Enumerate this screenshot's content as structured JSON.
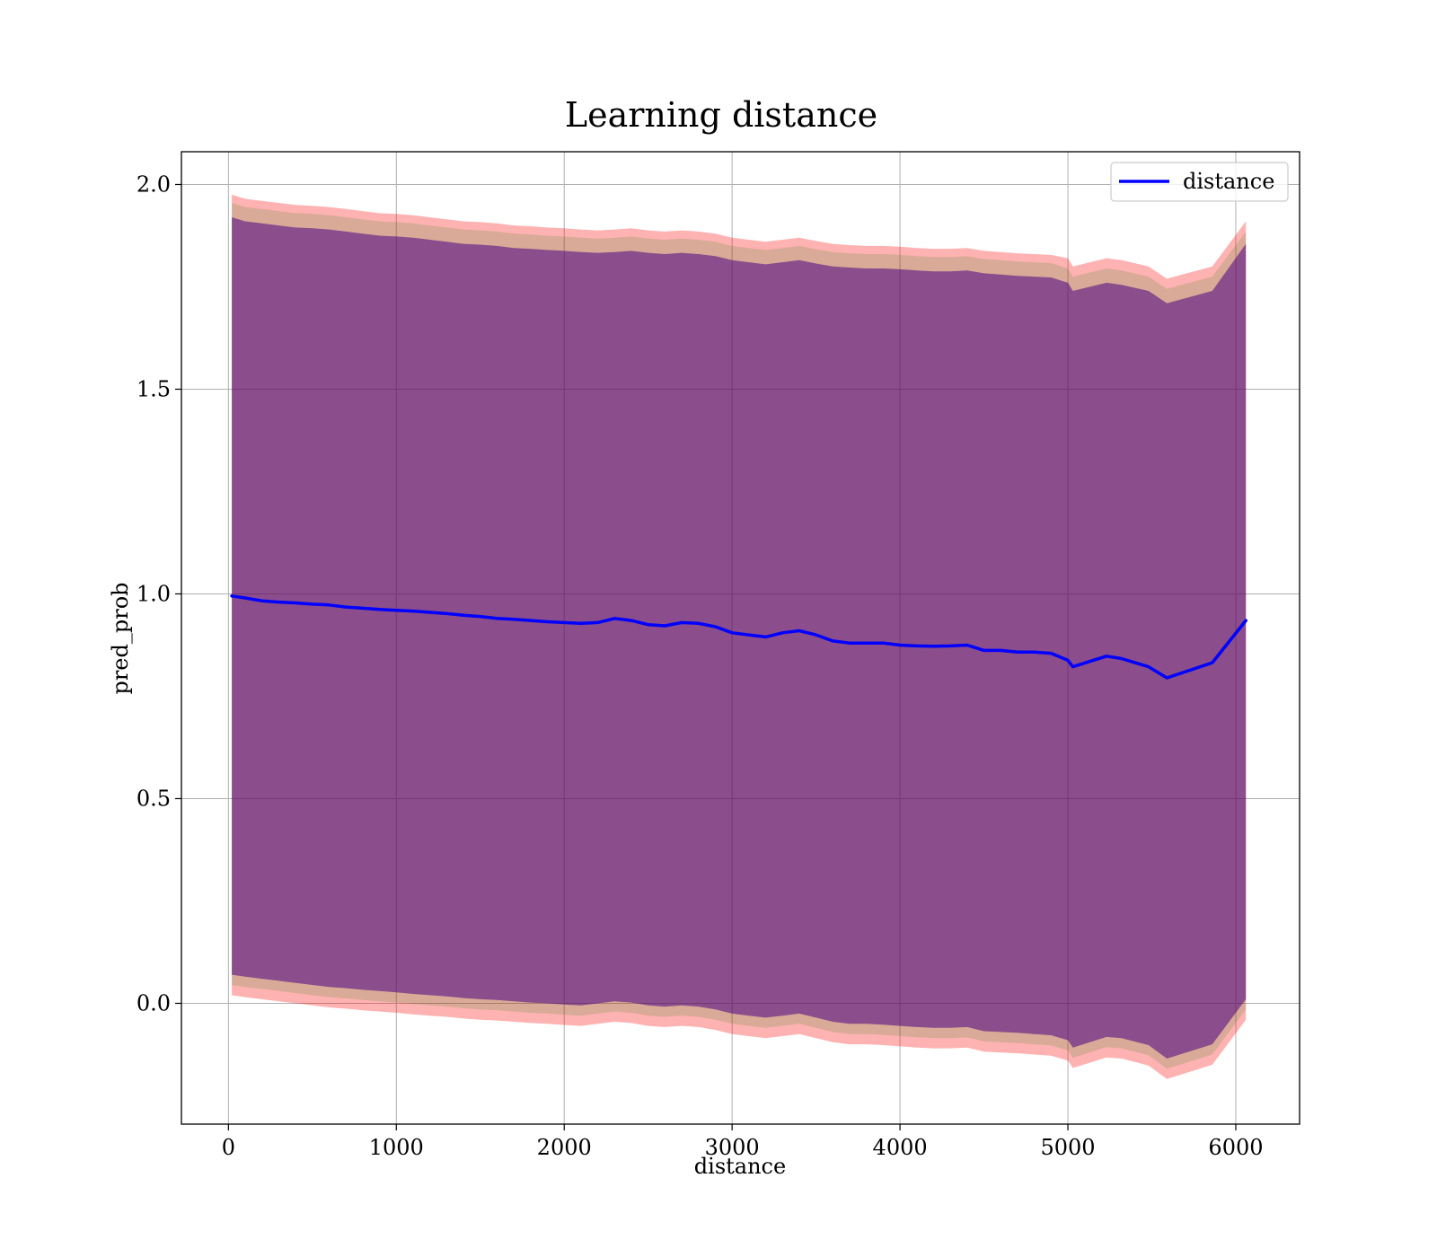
{
  "chart_data": {
    "type": "line",
    "title": "Learning distance",
    "xlabel": "distance",
    "ylabel": "pred_prob",
    "xlim": [
      -280,
      6380
    ],
    "ylim": [
      -0.295,
      2.08
    ],
    "xticks": [
      0,
      1000,
      2000,
      3000,
      4000,
      5000,
      6000
    ],
    "xtick_labels": [
      "0",
      "1000",
      "2000",
      "3000",
      "4000",
      "5000",
      "6000"
    ],
    "yticks": [
      0.0,
      0.5,
      1.0,
      1.5,
      2.0
    ],
    "ytick_labels": [
      "0.0",
      "0.5",
      "1.0",
      "1.5",
      "2.0"
    ],
    "grid": true,
    "legend": {
      "position": "top-right",
      "entries": [
        "distance"
      ]
    },
    "series": [
      {
        "name": "distance",
        "color": "#0000ff",
        "x": [
          20,
          100,
          200,
          300,
          400,
          500,
          600,
          700,
          800,
          900,
          1000,
          1100,
          1200,
          1300,
          1400,
          1500,
          1600,
          1700,
          1800,
          1900,
          2000,
          2100,
          2200,
          2300,
          2400,
          2500,
          2600,
          2700,
          2800,
          2900,
          3000,
          3100,
          3200,
          3300,
          3400,
          3500,
          3600,
          3700,
          3800,
          3900,
          4000,
          4100,
          4200,
          4300,
          4400,
          4500,
          4600,
          4700,
          4800,
          4900,
          5000,
          5030,
          5230,
          5320,
          5480,
          5590,
          5860,
          6060
        ],
        "y": [
          0.995,
          0.99,
          0.983,
          0.98,
          0.978,
          0.975,
          0.973,
          0.968,
          0.965,
          0.962,
          0.96,
          0.958,
          0.955,
          0.952,
          0.948,
          0.945,
          0.94,
          0.938,
          0.935,
          0.932,
          0.93,
          0.928,
          0.93,
          0.94,
          0.935,
          0.925,
          0.922,
          0.93,
          0.928,
          0.92,
          0.905,
          0.9,
          0.895,
          0.905,
          0.91,
          0.9,
          0.885,
          0.88,
          0.88,
          0.88,
          0.875,
          0.873,
          0.872,
          0.873,
          0.875,
          0.862,
          0.862,
          0.858,
          0.858,
          0.855,
          0.838,
          0.822,
          0.848,
          0.842,
          0.822,
          0.795,
          0.832,
          0.935
        ]
      }
    ],
    "bands": [
      {
        "color": "#ff0000",
        "alpha": 0.3,
        "x": [
          20,
          100,
          200,
          300,
          400,
          500,
          600,
          700,
          800,
          900,
          1000,
          1100,
          1200,
          1300,
          1400,
          1500,
          1600,
          1700,
          1800,
          1900,
          2000,
          2100,
          2200,
          2300,
          2400,
          2500,
          2600,
          2700,
          2800,
          2900,
          3000,
          3100,
          3200,
          3300,
          3400,
          3500,
          3600,
          3700,
          3800,
          3900,
          4000,
          4100,
          4200,
          4300,
          4400,
          4500,
          4600,
          4700,
          4800,
          4900,
          5000,
          5030,
          5230,
          5320,
          5480,
          5590,
          5860,
          6060
        ],
        "upper": [
          1.975,
          1.965,
          1.96,
          1.955,
          1.95,
          1.948,
          1.945,
          1.94,
          1.935,
          1.93,
          1.928,
          1.925,
          1.92,
          1.915,
          1.91,
          1.908,
          1.905,
          1.9,
          1.898,
          1.895,
          1.893,
          1.89,
          1.888,
          1.89,
          1.893,
          1.888,
          1.885,
          1.888,
          1.885,
          1.88,
          1.87,
          1.865,
          1.86,
          1.865,
          1.87,
          1.862,
          1.855,
          1.852,
          1.85,
          1.85,
          1.848,
          1.845,
          1.843,
          1.843,
          1.845,
          1.838,
          1.835,
          1.832,
          1.83,
          1.828,
          1.82,
          1.8,
          1.82,
          1.815,
          1.8,
          1.77,
          1.8,
          1.91
        ],
        "lower": [
          0.02,
          0.015,
          0.01,
          0.005,
          0.0,
          -0.005,
          -0.01,
          -0.013,
          -0.017,
          -0.02,
          -0.023,
          -0.027,
          -0.03,
          -0.033,
          -0.037,
          -0.04,
          -0.042,
          -0.045,
          -0.048,
          -0.05,
          -0.053,
          -0.055,
          -0.05,
          -0.045,
          -0.048,
          -0.055,
          -0.058,
          -0.055,
          -0.058,
          -0.065,
          -0.075,
          -0.08,
          -0.085,
          -0.08,
          -0.075,
          -0.085,
          -0.095,
          -0.1,
          -0.1,
          -0.102,
          -0.105,
          -0.108,
          -0.11,
          -0.11,
          -0.108,
          -0.118,
          -0.12,
          -0.122,
          -0.125,
          -0.128,
          -0.14,
          -0.158,
          -0.132,
          -0.135,
          -0.152,
          -0.185,
          -0.15,
          -0.04
        ]
      },
      {
        "color": "#008000",
        "alpha": 0.15,
        "x": [
          20,
          100,
          200,
          300,
          400,
          500,
          600,
          700,
          800,
          900,
          1000,
          1100,
          1200,
          1300,
          1400,
          1500,
          1600,
          1700,
          1800,
          1900,
          2000,
          2100,
          2200,
          2300,
          2400,
          2500,
          2600,
          2700,
          2800,
          2900,
          3000,
          3100,
          3200,
          3300,
          3400,
          3500,
          3600,
          3700,
          3800,
          3900,
          4000,
          4100,
          4200,
          4300,
          4400,
          4500,
          4600,
          4700,
          4800,
          4900,
          5000,
          5030,
          5230,
          5320,
          5480,
          5590,
          5860,
          6060
        ],
        "upper": [
          1.955,
          1.945,
          1.94,
          1.935,
          1.93,
          1.928,
          1.925,
          1.92,
          1.915,
          1.91,
          1.908,
          1.905,
          1.9,
          1.895,
          1.89,
          1.888,
          1.885,
          1.88,
          1.878,
          1.875,
          1.873,
          1.87,
          1.868,
          1.87,
          1.873,
          1.868,
          1.865,
          1.868,
          1.865,
          1.86,
          1.85,
          1.845,
          1.84,
          1.845,
          1.85,
          1.842,
          1.835,
          1.832,
          1.83,
          1.83,
          1.828,
          1.825,
          1.823,
          1.823,
          1.825,
          1.818,
          1.815,
          1.812,
          1.81,
          1.808,
          1.795,
          1.775,
          1.795,
          1.79,
          1.775,
          1.745,
          1.775,
          1.885
        ],
        "lower": [
          0.045,
          0.04,
          0.035,
          0.03,
          0.025,
          0.02,
          0.015,
          0.012,
          0.008,
          0.005,
          0.002,
          -0.002,
          -0.005,
          -0.008,
          -0.012,
          -0.015,
          -0.017,
          -0.02,
          -0.023,
          -0.025,
          -0.028,
          -0.03,
          -0.025,
          -0.02,
          -0.023,
          -0.03,
          -0.033,
          -0.03,
          -0.033,
          -0.04,
          -0.05,
          -0.055,
          -0.06,
          -0.055,
          -0.05,
          -0.06,
          -0.07,
          -0.075,
          -0.075,
          -0.077,
          -0.08,
          -0.083,
          -0.085,
          -0.085,
          -0.083,
          -0.093,
          -0.095,
          -0.097,
          -0.1,
          -0.103,
          -0.115,
          -0.133,
          -0.107,
          -0.11,
          -0.127,
          -0.16,
          -0.125,
          -0.015
        ]
      },
      {
        "color": "#4b0082",
        "alpha": 0.55,
        "x": [
          20,
          100,
          200,
          300,
          400,
          500,
          600,
          700,
          800,
          900,
          1000,
          1100,
          1200,
          1300,
          1400,
          1500,
          1600,
          1700,
          1800,
          1900,
          2000,
          2100,
          2200,
          2300,
          2400,
          2500,
          2600,
          2700,
          2800,
          2900,
          3000,
          3100,
          3200,
          3300,
          3400,
          3500,
          3600,
          3700,
          3800,
          3900,
          4000,
          4100,
          4200,
          4300,
          4400,
          4500,
          4600,
          4700,
          4800,
          4900,
          5000,
          5030,
          5230,
          5320,
          5480,
          5590,
          5860,
          6060
        ],
        "upper": [
          1.92,
          1.91,
          1.905,
          1.9,
          1.895,
          1.893,
          1.89,
          1.885,
          1.88,
          1.875,
          1.873,
          1.87,
          1.865,
          1.86,
          1.855,
          1.853,
          1.85,
          1.845,
          1.843,
          1.84,
          1.838,
          1.835,
          1.833,
          1.835,
          1.838,
          1.833,
          1.83,
          1.833,
          1.83,
          1.825,
          1.815,
          1.81,
          1.805,
          1.81,
          1.815,
          1.807,
          1.8,
          1.797,
          1.795,
          1.795,
          1.793,
          1.79,
          1.788,
          1.788,
          1.79,
          1.783,
          1.78,
          1.777,
          1.775,
          1.773,
          1.76,
          1.74,
          1.76,
          1.755,
          1.74,
          1.71,
          1.74,
          1.855
        ],
        "lower": [
          0.07,
          0.065,
          0.06,
          0.055,
          0.05,
          0.045,
          0.04,
          0.037,
          0.033,
          0.03,
          0.027,
          0.023,
          0.02,
          0.017,
          0.013,
          0.01,
          0.008,
          0.005,
          0.002,
          0.0,
          -0.003,
          -0.005,
          0.0,
          0.005,
          0.002,
          -0.005,
          -0.008,
          -0.005,
          -0.008,
          -0.015,
          -0.025,
          -0.03,
          -0.035,
          -0.03,
          -0.025,
          -0.035,
          -0.045,
          -0.05,
          -0.05,
          -0.052,
          -0.055,
          -0.058,
          -0.06,
          -0.06,
          -0.058,
          -0.068,
          -0.07,
          -0.072,
          -0.075,
          -0.078,
          -0.09,
          -0.108,
          -0.082,
          -0.085,
          -0.102,
          -0.135,
          -0.1,
          0.01
        ]
      }
    ]
  }
}
